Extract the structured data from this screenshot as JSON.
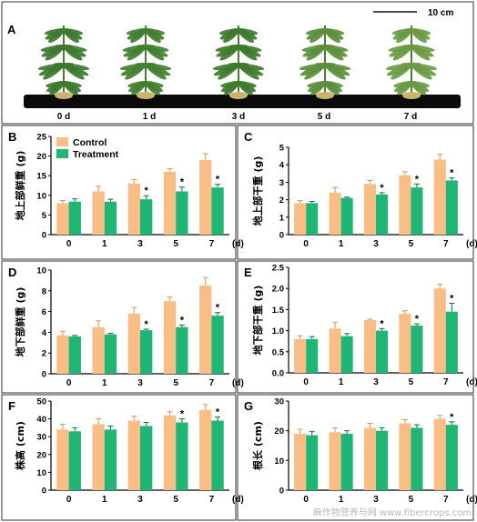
{
  "figure": {
    "panel_a": {
      "letter": "A",
      "scale_bar_label": "10 cm",
      "day_labels": [
        "0 d",
        "1 d",
        "3 d",
        "5 d",
        "7 d"
      ]
    },
    "watermark": "麻作物营养与网 www.fibercrops.com",
    "colors": {
      "control": "#f9bd86",
      "treatment": "#1fb574",
      "panel_border": "#333333"
    }
  },
  "chart_data": [
    {
      "panel": "B",
      "type": "bar",
      "ylabel": "地上部鲜重 (g)",
      "categories": [
        "0",
        "1",
        "3",
        "5",
        "7"
      ],
      "x_unit": "(d)",
      "ylim": [
        0,
        25
      ],
      "yticks": [
        0,
        5,
        10,
        15,
        20,
        25
      ],
      "legend": [
        "Control",
        "Treatment"
      ],
      "series": [
        {
          "name": "Control",
          "values": [
            8,
            11,
            13,
            16,
            19
          ],
          "errors": [
            0.7,
            1.3,
            1.0,
            0.8,
            1.6
          ]
        },
        {
          "name": "Treatment",
          "values": [
            8.4,
            8.4,
            9,
            11,
            12
          ],
          "errors": [
            0.7,
            0.6,
            0.9,
            1.1,
            0.8
          ],
          "sig": [
            "",
            "",
            "*",
            "*",
            "*"
          ]
        }
      ]
    },
    {
      "panel": "C",
      "type": "bar",
      "ylabel": "地上部干重 (g)",
      "categories": [
        "0",
        "1",
        "3",
        "5",
        "7"
      ],
      "x_unit": "(d)",
      "ylim": [
        0,
        5
      ],
      "yticks": [
        0,
        1,
        2,
        3,
        4,
        5
      ],
      "series": [
        {
          "name": "Control",
          "values": [
            1.8,
            2.4,
            2.9,
            3.4,
            4.3
          ],
          "errors": [
            0.15,
            0.3,
            0.2,
            0.2,
            0.3
          ]
        },
        {
          "name": "Treatment",
          "values": [
            1.8,
            2.1,
            2.3,
            2.7,
            3.1
          ],
          "errors": [
            0.1,
            0.05,
            0.1,
            0.2,
            0.15
          ],
          "sig": [
            "",
            "",
            "*",
            "*",
            "*"
          ]
        }
      ]
    },
    {
      "panel": "D",
      "type": "bar",
      "ylabel": "地下部鲜重 (g)",
      "categories": [
        "0",
        "1",
        "3",
        "5",
        "7"
      ],
      "x_unit": "(d)",
      "ylim": [
        0,
        10
      ],
      "yticks": [
        0,
        2,
        4,
        6,
        8,
        10
      ],
      "series": [
        {
          "name": "Control",
          "values": [
            3.7,
            4.5,
            5.8,
            7.0,
            8.5
          ],
          "errors": [
            0.4,
            0.6,
            0.6,
            0.4,
            0.8
          ]
        },
        {
          "name": "Treatment",
          "values": [
            3.6,
            3.8,
            4.2,
            4.5,
            5.6
          ],
          "errors": [
            0.1,
            0.1,
            0.1,
            0.2,
            0.3
          ],
          "sig": [
            "",
            "",
            "*",
            "*",
            "*"
          ]
        }
      ]
    },
    {
      "panel": "E",
      "type": "bar",
      "ylabel": "地下部干重 (g)",
      "categories": [
        "0",
        "1",
        "3",
        "5",
        "7"
      ],
      "x_unit": "(d)",
      "ylim": [
        0,
        2.5
      ],
      "yticks": [
        0.0,
        0.5,
        1.0,
        1.5,
        2.0,
        2.5
      ],
      "series": [
        {
          "name": "Control",
          "values": [
            0.8,
            1.05,
            1.25,
            1.4,
            2.0
          ],
          "errors": [
            0.08,
            0.15,
            0.02,
            0.07,
            0.1
          ]
        },
        {
          "name": "Treatment",
          "values": [
            0.8,
            0.87,
            1.0,
            1.12,
            1.45
          ],
          "errors": [
            0.06,
            0.06,
            0.05,
            0.04,
            0.2
          ],
          "sig": [
            "",
            "",
            "*",
            "*",
            "*"
          ]
        }
      ]
    },
    {
      "panel": "F",
      "type": "bar",
      "ylabel": "株高 (cm)",
      "categories": [
        "0",
        "1",
        "3",
        "5",
        "7"
      ],
      "x_unit": "(d)",
      "ylim": [
        0,
        50
      ],
      "yticks": [
        0,
        10,
        20,
        30,
        40,
        50
      ],
      "series": [
        {
          "name": "Control",
          "values": [
            34,
            37,
            39,
            42,
            45
          ],
          "errors": [
            3,
            3,
            2.5,
            2,
            3
          ]
        },
        {
          "name": "Treatment",
          "values": [
            33,
            34,
            36,
            38,
            39
          ],
          "errors": [
            2,
            2,
            2,
            2,
            2
          ],
          "sig": [
            "",
            "",
            "",
            "*",
            "*"
          ]
        }
      ]
    },
    {
      "panel": "G",
      "type": "bar",
      "ylabel": "根长 (cm)",
      "categories": [
        "0",
        "1",
        "3",
        "5",
        "7"
      ],
      "x_unit": "(d)",
      "ylim": [
        0,
        30
      ],
      "yticks": [
        0,
        10,
        20,
        30
      ],
      "series": [
        {
          "name": "Control",
          "values": [
            19,
            19.5,
            21,
            22.5,
            24
          ],
          "errors": [
            1.5,
            1.5,
            1.5,
            1.2,
            1.2
          ]
        },
        {
          "name": "Treatment",
          "values": [
            18.5,
            19,
            20,
            21,
            22
          ],
          "errors": [
            1.2,
            1.0,
            1.0,
            1.0,
            1.0
          ],
          "sig": [
            "",
            "",
            "",
            "",
            "*"
          ]
        }
      ]
    }
  ]
}
